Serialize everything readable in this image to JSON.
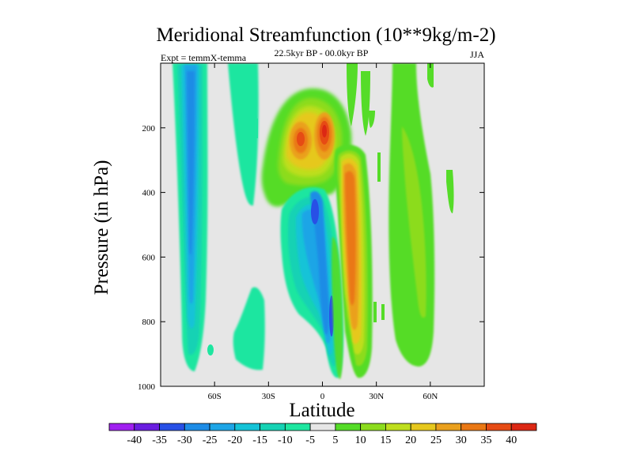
{
  "chart_data": {
    "type": "contour",
    "title": "Meridional Streamfunction (10**9kg/m-2)",
    "left_string": "Expt = temmX-temma",
    "center_string": "22.5kyr BP - 00.0kyr BP",
    "right_string": "JJA",
    "xlabel": "Latitude",
    "ylabel": "Pressure (in hPa)",
    "xlim": [
      -90,
      90
    ],
    "ylim": [
      1000,
      0
    ],
    "x_ticks": [
      {
        "value": -60,
        "label": "60S"
      },
      {
        "value": -30,
        "label": "30S"
      },
      {
        "value": 0,
        "label": "0"
      },
      {
        "value": 30,
        "label": "30N"
      },
      {
        "value": 60,
        "label": "60N"
      }
    ],
    "y_ticks": [
      {
        "value": 200,
        "label": "200"
      },
      {
        "value": 400,
        "label": "400"
      },
      {
        "value": 600,
        "label": "600"
      },
      {
        "value": 800,
        "label": "800"
      },
      {
        "value": 1000,
        "label": "1000"
      }
    ],
    "colorbar": {
      "labels": [
        "-40",
        "-35",
        "-30",
        "-25",
        "-20",
        "-15",
        "-10",
        "-5",
        "5",
        "10",
        "15",
        "20",
        "25",
        "30",
        "35",
        "40"
      ],
      "colors": [
        "#a020f0",
        "#6a1ee0",
        "#2850e6",
        "#1e8ce6",
        "#1ea5e6",
        "#14c3d7",
        "#16d2b4",
        "#1ee6a0",
        "#e6e6e6",
        "#55dc28",
        "#8cdc1e",
        "#bede1e",
        "#e6c81e",
        "#eaa01e",
        "#ea7814",
        "#e64b14",
        "#dc2814"
      ]
    },
    "missing_color": "#e6e6e6",
    "features": [
      {
        "name": "sh-polar-cell",
        "lat": [
          -84,
          -72
        ],
        "p": [
          50,
          960
        ],
        "peak": -30
      },
      {
        "name": "sh-midlat-weak",
        "lat": [
          -57,
          -28
        ],
        "p": [
          50,
          470
        ],
        "peak": -8
      },
      {
        "name": "sh-lower-weak",
        "lat": [
          -48,
          -28
        ],
        "p": [
          680,
          970
        ],
        "peak": -10
      },
      {
        "name": "upper-tropical-max",
        "lat": [
          -18,
          10
        ],
        "p": [
          100,
          330
        ],
        "peak": 40
      },
      {
        "name": "south-hadley-min",
        "lat": [
          -10,
          8
        ],
        "p": [
          300,
          960
        ],
        "peak": -35
      },
      {
        "name": "north-hadley-max",
        "lat": [
          10,
          24
        ],
        "p": [
          150,
          960
        ],
        "peak": 35
      },
      {
        "name": "nh-midlat-weak",
        "lat": [
          38,
          62
        ],
        "p": [
          0,
          960
        ],
        "peak": 8
      }
    ]
  }
}
